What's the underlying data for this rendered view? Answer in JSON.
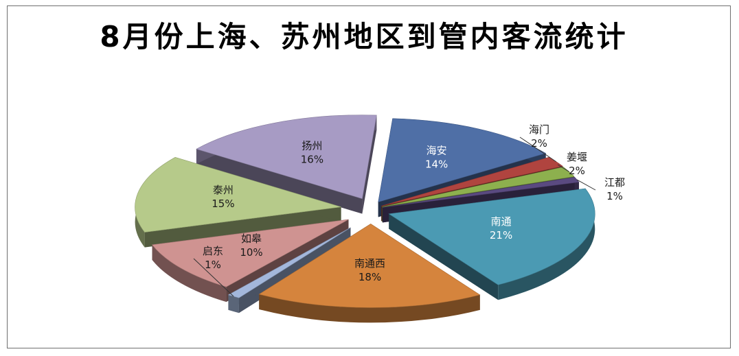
{
  "chart_data": {
    "type": "pie",
    "title": "8月份上海、苏州地区到管内客流统计",
    "slices": [
      {
        "label": "海安",
        "value": 14,
        "value_label": "14%",
        "color": "#4f6fa6"
      },
      {
        "label": "海门",
        "value": 2,
        "value_label": "2%",
        "color": "#b0443f"
      },
      {
        "label": "姜堰",
        "value": 2,
        "value_label": "2%",
        "color": "#8db04e"
      },
      {
        "label": "江都",
        "value": 1,
        "value_label": "1%",
        "color": "#5a4a80"
      },
      {
        "label": "南通",
        "value": 21,
        "value_label": "21%",
        "color": "#4b9ab3"
      },
      {
        "label": "南通西",
        "value": 18,
        "value_label": "18%",
        "color": "#d5843d"
      },
      {
        "label": "启东",
        "value": 1,
        "value_label": "1%",
        "color": "#a3b7db"
      },
      {
        "label": "如皋",
        "value": 10,
        "value_label": "10%",
        "color": "#cf9391"
      },
      {
        "label": "泰州",
        "value": 15,
        "value_label": "15%",
        "color": "#b6ca8a"
      },
      {
        "label": "扬州",
        "value": 16,
        "value_label": "16%",
        "color": "#a79bc4"
      }
    ],
    "legend": "none",
    "style": "3d-exploded-pie"
  }
}
